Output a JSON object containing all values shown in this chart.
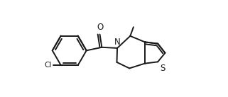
{
  "bg_color": "#ffffff",
  "line_color": "#1a1a1a",
  "lw": 1.4,
  "figsize": [
    3.21,
    1.37
  ],
  "dpi": 100,
  "xlim": [
    -1.1,
    3.3
  ],
  "ylim": [
    -1.15,
    1.25
  ]
}
